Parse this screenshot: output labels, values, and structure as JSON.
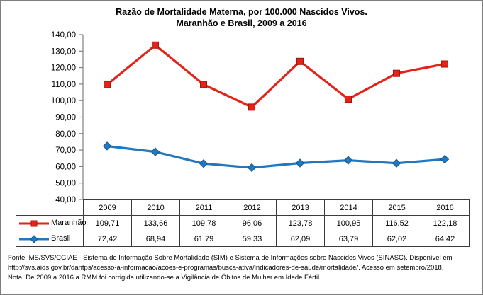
{
  "title": {
    "line1": "Razão de Mortalidade Materna, por 100.000 Nascidos Vivos.",
    "line2": "Maranhão e Brasil, 2009 a 2016"
  },
  "colors": {
    "maranhao": "#e3231a",
    "maranhao_marker_stroke": "#a91409",
    "brasil": "#2278be",
    "brasil_marker_stroke": "#16568c",
    "axis": "#808080",
    "table_border": "#3c3c3c",
    "frame_border": "#7f7f7f"
  },
  "chart_data": {
    "type": "line",
    "x": [
      2009,
      2010,
      2011,
      2012,
      2013,
      2014,
      2015,
      2016
    ],
    "series": [
      {
        "name": "Maranhão",
        "marker": "square",
        "color": "#e3231a",
        "marker_stroke": "#a91409",
        "values": [
          109.71,
          133.66,
          109.78,
          96.06,
          123.78,
          100.95,
          116.52,
          122.18
        ]
      },
      {
        "name": "Brasil",
        "marker": "diamond",
        "color": "#2278be",
        "marker_stroke": "#16568c",
        "values": [
          72.42,
          68.94,
          61.79,
          59.33,
          62.09,
          63.79,
          62.02,
          64.42
        ]
      }
    ],
    "title": "Razão de Mortalidade Materna, por 100.000 Nascidos Vivos. Maranhão e Brasil, 2009 a 2016",
    "xlabel": "",
    "ylabel": "",
    "ylim": [
      40,
      140
    ],
    "ytick_step": 10,
    "ytick_labels": [
      "140,00",
      "130,00",
      "120,00",
      "110,00",
      "100,00",
      "90,00",
      "80,00",
      "70,00",
      "60,00",
      "50,00",
      "40,00"
    ],
    "grid": false,
    "legend_position": "table-left"
  },
  "table": {
    "years": [
      "2009",
      "2010",
      "2011",
      "2012",
      "2013",
      "2014",
      "2015",
      "2016"
    ],
    "rows": [
      {
        "label": "Maranhão",
        "values": [
          "109,71",
          "133,66",
          "109,78",
          "96,06",
          "123,78",
          "100,95",
          "116,52",
          "122,18"
        ]
      },
      {
        "label": "Brasil",
        "values": [
          "72,42",
          "68,94",
          "61,79",
          "59,33",
          "62,09",
          "63,79",
          "62,02",
          "64,42"
        ]
      }
    ]
  },
  "footer": {
    "lines": [
      "Fonte: MS/SVS/CGIAE - Sistema de Informação Sobre Mortalidade (SIM) e Sistema de Informações sobre Nascidos Vivos (SINASC). Disponível em",
      "http://svs.aids.gov.br/dantps/acesso-a-informacao/acoes-e-programas/busca-ativa/indicadores-de-saude/mortalidade/. Acesso em setembro/2018.",
      "Nota: De 2009 a 2016 a RMM foi corrigida utilizando-se a Vigilância de Óbitos de Mulher em Idade Fértil."
    ]
  }
}
